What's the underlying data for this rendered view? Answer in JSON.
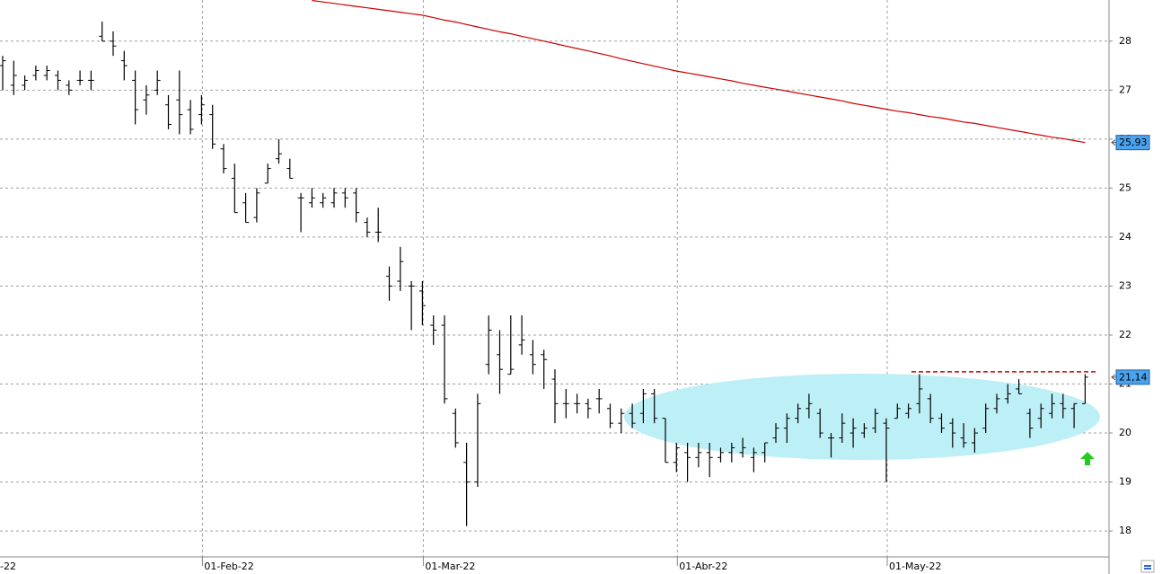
{
  "chart_data": {
    "type": "ohlc",
    "categories": [
      null,
      null,
      null,
      null,
      null,
      null,
      null,
      null,
      null,
      null,
      null,
      null,
      null,
      null,
      null,
      null,
      null,
      null,
      "01-Feb-22",
      null,
      null,
      null,
      null,
      null,
      null,
      null,
      null,
      null,
      null,
      null,
      null,
      null,
      null,
      null,
      null,
      null,
      null,
      null,
      "01-Mar-22",
      null,
      null,
      null,
      null,
      null,
      null,
      null,
      null,
      null,
      null,
      null,
      null,
      null,
      null,
      null,
      null,
      null,
      null,
      null,
      null,
      null,
      null,
      "01-Abr-22",
      null,
      null,
      null,
      null,
      null,
      null,
      null,
      null,
      null,
      null,
      null,
      null,
      null,
      null,
      null,
      null,
      null,
      null,
      "01-May-22",
      null,
      null,
      null,
      null,
      null,
      null,
      null,
      null,
      null,
      null,
      null,
      null,
      null,
      null,
      null,
      null,
      null,
      null
    ],
    "edge_label": "-22",
    "open": [
      27.5,
      27.1,
      27.1,
      27.3,
      27.3,
      27.3,
      27.1,
      27.2,
      27.2,
      28.1,
      28.0,
      27.6,
      27.2,
      26.8,
      27.0,
      26.7,
      26.8,
      26.6,
      26.5,
      26.5,
      25.8,
      25.2,
      24.7,
      24.4,
      25.1,
      25.6,
      25.4,
      24.8,
      24.7,
      24.7,
      24.7,
      24.9,
      24.9,
      24.3,
      24.1,
      23.2,
      23.1,
      23.0,
      22.9,
      22.2,
      22.2,
      20.4,
      19.4,
      19.0,
      21.4,
      21.6,
      21.2,
      21.8,
      21.6,
      21.6,
      21.1,
      20.6,
      20.6,
      20.6,
      20.7,
      20.5,
      20.2,
      20.4,
      20.4,
      20.8,
      20.3,
      19.4,
      19.6,
      19.5,
      19.6,
      19.5,
      19.6,
      19.6,
      19.5,
      19.6,
      19.9,
      20.1,
      20.3,
      20.5,
      20.4,
      19.9,
      19.9,
      20.0,
      20.0,
      20.1,
      20.2,
      20.3,
      20.4,
      20.6,
      20.7,
      20.3,
      20.2,
      19.9,
      19.8,
      20.1,
      20.5,
      20.7,
      20.9,
      20.4,
      20.3,
      20.4,
      20.6,
      20.5,
      20.6
    ],
    "high": [
      27.7,
      27.6,
      27.3,
      27.5,
      27.5,
      27.4,
      27.2,
      27.4,
      27.4,
      28.4,
      28.2,
      27.8,
      27.4,
      27.1,
      27.4,
      26.9,
      27.4,
      26.8,
      26.9,
      26.7,
      25.9,
      25.5,
      24.9,
      25.0,
      25.5,
      26.0,
      25.6,
      24.9,
      25.0,
      24.9,
      25.0,
      25.0,
      25.0,
      24.4,
      24.6,
      23.4,
      23.8,
      23.1,
      23.1,
      22.4,
      22.4,
      20.5,
      19.8,
      20.8,
      22.4,
      22.1,
      22.4,
      22.4,
      21.9,
      21.7,
      21.3,
      20.9,
      20.8,
      20.7,
      20.9,
      20.6,
      20.5,
      20.6,
      20.9,
      20.9,
      20.3,
      19.8,
      19.8,
      19.8,
      19.8,
      19.7,
      19.8,
      19.9,
      19.7,
      19.8,
      20.2,
      20.4,
      20.6,
      20.8,
      20.5,
      20.0,
      20.4,
      20.3,
      20.2,
      20.5,
      20.3,
      20.6,
      20.6,
      21.2,
      20.8,
      20.4,
      20.3,
      20.2,
      20.1,
      20.6,
      20.8,
      21.0,
      21.1,
      20.5,
      20.6,
      20.8,
      20.8,
      20.6,
      21.2
    ],
    "low": [
      27.0,
      26.9,
      27.0,
      27.2,
      27.2,
      27.0,
      26.9,
      27.1,
      27.0,
      28.0,
      27.7,
      27.2,
      26.3,
      26.5,
      26.9,
      26.2,
      26.1,
      26.1,
      26.3,
      25.8,
      25.3,
      24.5,
      24.3,
      24.3,
      25.1,
      25.5,
      25.2,
      24.1,
      24.6,
      24.6,
      24.6,
      24.6,
      24.3,
      24.0,
      23.9,
      22.7,
      22.9,
      22.1,
      22.2,
      21.8,
      20.6,
      19.7,
      18.1,
      18.9,
      21.2,
      20.8,
      21.2,
      21.6,
      21.2,
      20.9,
      20.2,
      20.3,
      20.4,
      20.3,
      20.4,
      20.1,
      20.0,
      20.1,
      20.2,
      20.2,
      19.4,
      19.2,
      19.0,
      19.3,
      19.1,
      19.4,
      19.4,
      19.5,
      19.2,
      19.4,
      19.8,
      19.8,
      20.2,
      20.3,
      19.9,
      19.5,
      19.8,
      19.7,
      19.9,
      20.0,
      19.0,
      20.3,
      20.3,
      20.4,
      20.2,
      20.0,
      19.7,
      19.7,
      19.6,
      20.0,
      20.4,
      20.6,
      20.8,
      19.9,
      20.1,
      20.3,
      20.3,
      20.1,
      20.6
    ],
    "close": [
      27.6,
      27.3,
      27.2,
      27.4,
      27.4,
      27.2,
      27.0,
      27.2,
      27.2,
      28.0,
      27.9,
      27.5,
      26.6,
      26.9,
      27.2,
      26.3,
      26.5,
      26.2,
      26.7,
      25.9,
      25.4,
      24.5,
      24.3,
      24.9,
      25.4,
      25.7,
      25.2,
      24.8,
      24.8,
      24.8,
      24.9,
      24.8,
      24.5,
      24.1,
      24.1,
      23.0,
      23.5,
      23.0,
      22.6,
      22.1,
      20.7,
      19.8,
      19.0,
      20.6,
      22.1,
      21.3,
      21.3,
      21.9,
      21.4,
      21.5,
      20.6,
      20.6,
      20.6,
      20.5,
      20.7,
      20.2,
      20.4,
      20.2,
      20.8,
      20.3,
      19.4,
      19.7,
      19.5,
      19.6,
      19.5,
      19.6,
      19.7,
      19.7,
      19.6,
      19.8,
      20.1,
      20.3,
      20.5,
      20.6,
      20.0,
      19.9,
      20.2,
      20.1,
      20.1,
      20.4,
      20.1,
      20.5,
      20.5,
      20.9,
      20.3,
      20.1,
      20.0,
      19.8,
      20.0,
      20.5,
      20.7,
      20.8,
      20.8,
      20.1,
      20.5,
      20.6,
      20.5,
      20.6,
      21.14
    ],
    "bar_color": "#000000",
    "moving_average": {
      "color": "#cc0000",
      "values": [
        null,
        null,
        null,
        null,
        null,
        null,
        null,
        null,
        null,
        null,
        null,
        null,
        null,
        null,
        null,
        null,
        null,
        null,
        null,
        null,
        null,
        null,
        null,
        null,
        null,
        null,
        null,
        null,
        28.83,
        28.8,
        28.77,
        28.74,
        28.71,
        28.68,
        28.65,
        28.62,
        28.59,
        28.56,
        28.53,
        28.48,
        28.43,
        28.39,
        28.34,
        28.29,
        28.24,
        28.19,
        28.15,
        28.1,
        28.05,
        28.0,
        27.95,
        27.9,
        27.85,
        27.8,
        27.75,
        27.7,
        27.64,
        27.59,
        27.54,
        27.49,
        27.44,
        27.39,
        27.35,
        27.31,
        27.27,
        27.23,
        27.19,
        27.14,
        27.1,
        27.06,
        27.02,
        26.98,
        26.94,
        26.9,
        26.86,
        26.82,
        26.78,
        26.73,
        26.69,
        26.65,
        26.61,
        26.57,
        26.54,
        26.5,
        26.46,
        26.43,
        26.39,
        26.35,
        26.32,
        26.28,
        26.24,
        26.2,
        26.16,
        26.12,
        26.08,
        26.04,
        26.01,
        25.97,
        25.93
      ]
    },
    "resistance": 21.25,
    "resistance_color": "#cc0000",
    "price_tags": [
      {
        "value": 25.93,
        "label": "25,93"
      },
      {
        "value": 21.14,
        "label": "21,14"
      }
    ],
    "tag_color": "#4aa3ef",
    "ylim": [
      17.47,
      28.84
    ],
    "yticks": [
      18,
      19,
      20,
      21,
      22,
      23,
      24,
      25,
      26,
      27,
      28
    ],
    "grid": true
  }
}
